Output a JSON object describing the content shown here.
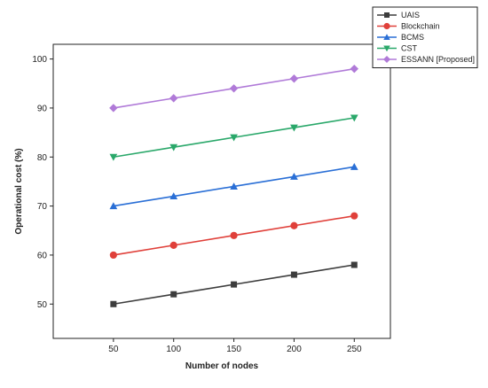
{
  "chart_data": {
    "type": "line",
    "xlabel": "Number of nodes",
    "ylabel": "Operational cost (%)",
    "x": [
      50,
      100,
      150,
      200,
      250
    ],
    "xlim": [
      0,
      280
    ],
    "ylim": [
      43,
      103
    ],
    "xticks": [
      50,
      100,
      150,
      200,
      250
    ],
    "yticks": [
      50,
      60,
      70,
      80,
      90,
      100
    ],
    "grid": false,
    "legend_position": "top-right",
    "series": [
      {
        "name": "UAIS",
        "values": [
          50,
          52,
          54,
          56,
          58
        ],
        "color": "#3d3d3d",
        "marker": "square"
      },
      {
        "name": "Blockchain",
        "values": [
          60,
          62,
          64,
          66,
          68
        ],
        "color": "#e0403a",
        "marker": "circle"
      },
      {
        "name": "BCMS",
        "values": [
          70,
          72,
          74,
          76,
          78
        ],
        "color": "#2a6fd6",
        "marker": "triangle-up"
      },
      {
        "name": "CST",
        "values": [
          80,
          82,
          84,
          86,
          88
        ],
        "color": "#2aa86a",
        "marker": "triangle-down"
      },
      {
        "name": "ESSANN [Proposed]",
        "values": [
          90,
          92,
          94,
          96,
          98
        ],
        "color": "#b07ad8",
        "marker": "diamond"
      }
    ]
  }
}
